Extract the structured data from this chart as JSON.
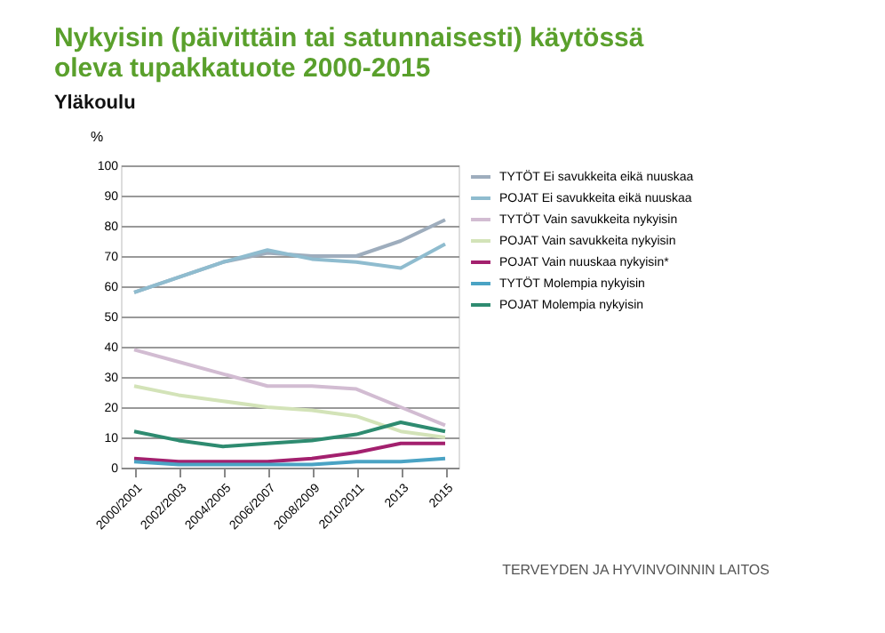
{
  "chart_data": {
    "type": "line",
    "title": [
      "Nykyisin (päivittäin tai satunnaisesti) käytössä",
      "oleva tupakkatuote 2000-2015"
    ],
    "subtitle": "Yläkoulu",
    "ylabel": "%",
    "categories": [
      "2000/2001",
      "2002/2003",
      "2004/2005",
      "2006/2007",
      "2008/2009",
      "2010/2011",
      "2013",
      "2015"
    ],
    "series": [
      {
        "name": "TYTÖT Ei savukkeita eikä nuuskaa",
        "color": "#9eadbd",
        "values": [
          58,
          63,
          68,
          71,
          70,
          70,
          75,
          82
        ]
      },
      {
        "name": "POJAT Ei savukkeita eikä nuuskaa",
        "color": "#8fbccf",
        "values": [
          58,
          63,
          68,
          72,
          69,
          68,
          66,
          74
        ]
      },
      {
        "name": "TYTÖT Vain savukkeita nykyisin",
        "color": "#d2bcd2",
        "values": [
          39,
          35,
          31,
          27,
          27,
          26,
          20,
          14
        ]
      },
      {
        "name": "POJAT Vain savukkeita nykyisin",
        "color": "#d3e3b8",
        "values": [
          27,
          24,
          22,
          20,
          19,
          17,
          12,
          10
        ]
      },
      {
        "name": "POJAT Vain nuuskaa nykyisin*",
        "color": "#a3206e",
        "values": [
          3,
          2,
          2,
          2,
          3,
          5,
          8,
          8
        ]
      },
      {
        "name": "TYTÖT Molempia nykyisin",
        "color": "#4aa3c4",
        "values": [
          2,
          1,
          1,
          1,
          1,
          2,
          2,
          3
        ]
      },
      {
        "name": "POJAT Molempia nykyisin",
        "color": "#2e8b70",
        "values": [
          12,
          9,
          7,
          8,
          9,
          11,
          15,
          12
        ]
      }
    ],
    "ylim": [
      0,
      100
    ],
    "yticks": [
      0,
      10,
      20,
      30,
      40,
      50,
      60,
      70,
      80,
      90,
      100
    ],
    "grid": "y",
    "legend": "right",
    "marker": "none",
    "line_style": "solid",
    "annotations": [
      "TERVEYDEN JA HYVINVOINNIN LAITOS"
    ]
  }
}
